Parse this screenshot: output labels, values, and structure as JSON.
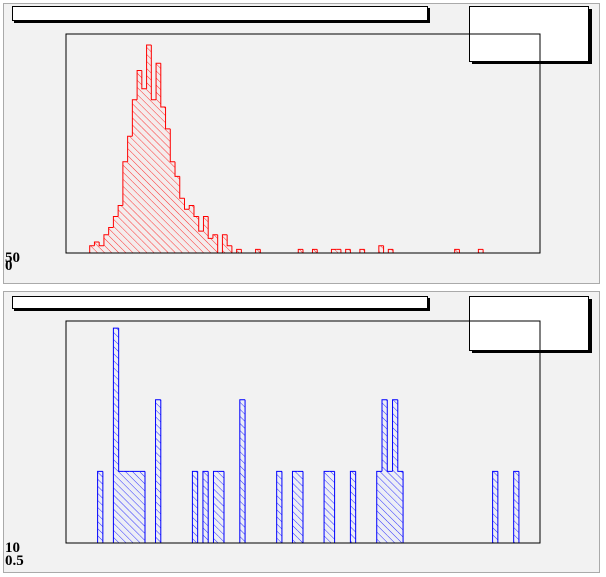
{
  "chart_data": [
    {
      "type": "histogram",
      "color": "#ff0000",
      "xlim": [
        0,
        100
      ],
      "ylim": [
        0,
        60
      ],
      "corner_labels": [
        "50",
        "0"
      ],
      "bins": [
        0,
        1,
        2,
        3,
        4,
        5,
        6,
        7,
        8,
        9,
        10,
        11,
        12,
        13,
        14,
        15,
        16,
        17,
        18,
        19,
        20,
        21,
        22,
        23,
        24,
        25,
        26,
        27,
        28,
        29,
        30,
        31,
        32,
        33,
        34,
        35,
        36,
        37,
        38,
        39,
        40,
        41,
        42,
        43,
        44,
        45,
        46,
        47,
        48,
        49,
        50,
        51,
        52,
        53,
        54,
        55,
        56,
        57,
        58,
        59,
        60,
        61,
        62,
        63,
        64,
        65,
        66,
        67,
        68,
        69,
        70,
        71,
        72,
        73,
        74,
        75,
        76,
        77,
        78,
        79,
        80,
        81,
        82,
        83,
        84,
        85,
        86,
        87,
        88,
        89,
        90,
        91,
        92,
        93,
        94,
        95,
        96,
        97,
        98,
        99,
        100
      ],
      "values": [
        0,
        0,
        0,
        0,
        0,
        2,
        3,
        2,
        5,
        7,
        10,
        13,
        25,
        32,
        42,
        50,
        45,
        57,
        42,
        52,
        40,
        34,
        25,
        21,
        15,
        12,
        13,
        10,
        6,
        10,
        4,
        5,
        0,
        5,
        2,
        0,
        1,
        0,
        0,
        0,
        1,
        0,
        0,
        0,
        0,
        0,
        0,
        0,
        0,
        1,
        0,
        0,
        1,
        0,
        0,
        0,
        1,
        1,
        0,
        1,
        0,
        0,
        1,
        0,
        0,
        0,
        2,
        0,
        1,
        0,
        0,
        0,
        0,
        0,
        0,
        0,
        0,
        0,
        0,
        0,
        0,
        0,
        1,
        0,
        0,
        0,
        0,
        1,
        0,
        0,
        0,
        0,
        0,
        0,
        0,
        0,
        0,
        0,
        0,
        0
      ]
    },
    {
      "type": "histogram",
      "color": "#0000ff",
      "xlim": [
        0,
        90
      ],
      "ylim": [
        0,
        3.1
      ],
      "corner_labels": [
        "10",
        "0.5"
      ],
      "bins": [
        0,
        1,
        2,
        3,
        4,
        5,
        6,
        7,
        8,
        9,
        10,
        11,
        12,
        13,
        14,
        15,
        16,
        17,
        18,
        19,
        20,
        21,
        22,
        23,
        24,
        25,
        26,
        27,
        28,
        29,
        30,
        31,
        32,
        33,
        34,
        35,
        36,
        37,
        38,
        39,
        40,
        41,
        42,
        43,
        44,
        45,
        46,
        47,
        48,
        49,
        50,
        51,
        52,
        53,
        54,
        55,
        56,
        57,
        58,
        59,
        60,
        61,
        62,
        63,
        64,
        65,
        66,
        67,
        68,
        69,
        70,
        71,
        72,
        73,
        74,
        75,
        76,
        77,
        78,
        79,
        80,
        81,
        82,
        83,
        84,
        85,
        86,
        87,
        88,
        89,
        90
      ],
      "values": [
        0,
        0,
        0,
        0,
        0,
        0,
        1,
        0,
        0,
        3,
        1,
        1,
        1,
        1,
        1,
        0,
        0,
        2,
        0,
        0,
        0,
        0,
        0,
        0,
        1,
        0,
        1,
        0,
        1,
        1,
        0,
        0,
        0,
        2,
        0,
        0,
        0,
        0,
        0,
        0,
        1,
        0,
        0,
        1,
        1,
        0,
        0,
        0,
        0,
        1,
        1,
        0,
        0,
        0,
        1,
        0,
        0,
        0,
        0,
        1,
        2,
        1,
        2,
        1,
        0,
        0,
        0,
        0,
        0,
        0,
        0,
        0,
        0,
        0,
        0,
        0,
        0,
        0,
        0,
        0,
        0,
        1,
        0,
        0,
        0,
        1,
        0,
        0,
        0,
        0
      ]
    }
  ]
}
